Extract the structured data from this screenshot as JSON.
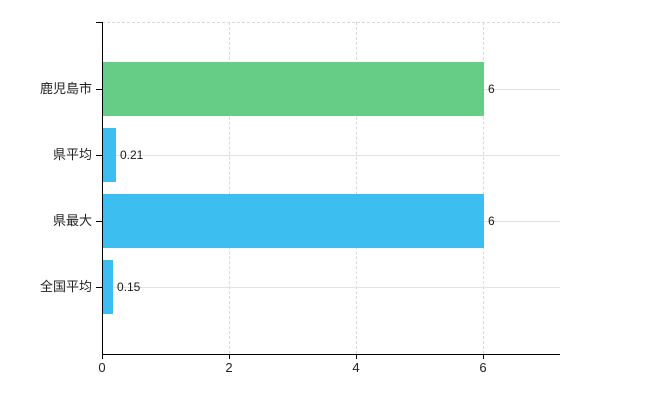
{
  "chart_data": {
    "type": "bar",
    "orientation": "horizontal",
    "title": "",
    "xlabel": "",
    "ylabel": "",
    "categories": [
      "鹿児島市",
      "県平均",
      "県最大",
      "全国平均"
    ],
    "values": [
      6,
      0.21,
      6,
      0.15
    ],
    "value_labels": [
      "6",
      "0.21",
      "6",
      "0.15"
    ],
    "bar_colors": [
      "#66cd86",
      "#3dbef0",
      "#3dbef0",
      "#3dbef0"
    ],
    "x_ticks": [
      0,
      2,
      4,
      6
    ],
    "x_tick_labels": [
      "0",
      "2",
      "4",
      "6"
    ],
    "xlim": [
      0,
      7.2
    ],
    "grid": true,
    "legend": false
  },
  "colors": {
    "bar_green": "#66cd86",
    "bar_blue": "#3dbef0",
    "axis": "#000000",
    "grid_horizontal": "#dde6dd",
    "grid_vertical": "#d9d9d9",
    "text": "#222222",
    "background": "#ffffff"
  }
}
